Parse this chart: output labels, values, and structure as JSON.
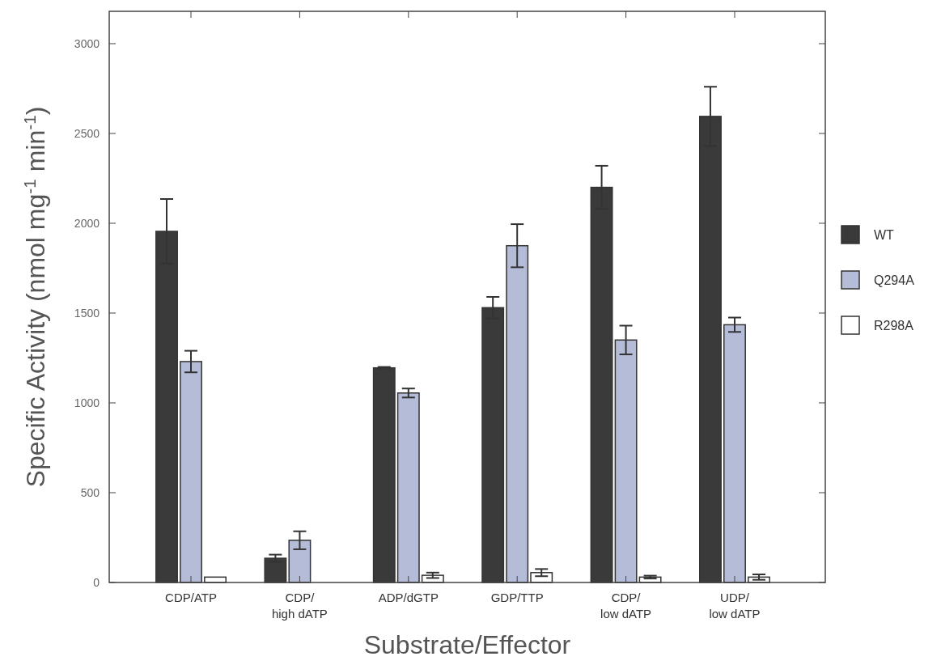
{
  "chart_data": {
    "type": "bar",
    "xlabel": "Substrate/Effector",
    "ylabel": "Specific Activity (nmol mg$^{-1}$ min$^{-1}$)",
    "categories": [
      "CDP/ATP",
      "CDP/\nhigh dATP",
      "ADP/dGTP",
      "GDP/TTP",
      "CDP/\nlow dATP",
      "UDP/\nlow dATP"
    ],
    "series": [
      {
        "name": "WT",
        "color": "#3a3a3a",
        "values": [
          1955,
          135,
          1195,
          1530,
          2200,
          2595
        ],
        "errors": [
          180,
          20,
          5,
          60,
          120,
          165
        ]
      },
      {
        "name": "Q294A",
        "color": "#b4bcd8",
        "values": [
          1230,
          235,
          1055,
          1875,
          1350,
          1435
        ],
        "errors": [
          60,
          50,
          25,
          120,
          80,
          40
        ]
      },
      {
        "name": "R298A",
        "color": "#ffffff",
        "values": [
          30,
          null,
          40,
          55,
          30,
          30
        ],
        "errors": [
          null,
          null,
          15,
          20,
          8,
          15
        ]
      }
    ],
    "ylim": [
      0,
      3180
    ],
    "yticks": [
      0,
      500,
      1000,
      1500,
      2000,
      2500,
      3000
    ],
    "grid": false,
    "legend": "right"
  }
}
